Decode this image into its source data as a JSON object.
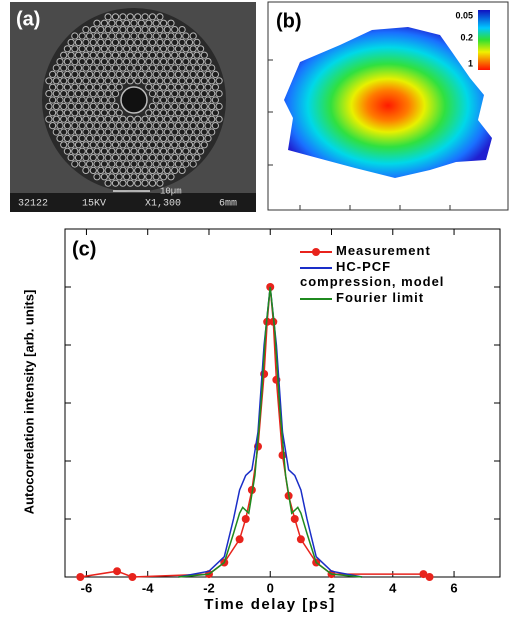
{
  "panel_a": {
    "label": "(a)",
    "scale_bar": "10µm",
    "info": [
      "32122",
      "15KV",
      "X1,300",
      "6mm"
    ]
  },
  "panel_b": {
    "label": "(b)",
    "colorbar_labels": [
      "0.05",
      "0.2",
      "1"
    ]
  },
  "chart_data": {
    "type": "line",
    "label": "(c)",
    "x_label": "Time delay [ps]",
    "y_label": "Autocorrelation intensity [arb. units]",
    "xlim": [
      -6.7,
      7.5
    ],
    "xticks": [
      -6,
      -4,
      -2,
      0,
      2,
      4,
      6
    ],
    "ylim": [
      0,
      1.2
    ],
    "yticks": [
      0,
      0.2,
      0.4,
      0.6,
      0.8,
      1.0
    ],
    "ytick_labels": false,
    "legend": "upper right",
    "series": [
      {
        "name": "Measurement",
        "color": "#e8231c",
        "markers": true,
        "x": [
          -6.2,
          -5,
          -4.5,
          -2,
          -1.5,
          -1,
          -0.8,
          -0.6,
          -0.4,
          -0.2,
          -0.1,
          0,
          0.1,
          0.2,
          0.4,
          0.6,
          0.8,
          1,
          1.5,
          2,
          5,
          5.2
        ],
        "values": [
          0,
          0.02,
          0,
          0.01,
          0.05,
          0.13,
          0.2,
          0.3,
          0.45,
          0.7,
          0.88,
          1.0,
          0.88,
          0.68,
          0.42,
          0.28,
          0.2,
          0.13,
          0.05,
          0.01,
          0.01,
          0
        ]
      },
      {
        "name": "HC-PCF compression, model",
        "color": "#1a2ec8",
        "markers": false,
        "x": [
          -3,
          -2,
          -1.5,
          -1.2,
          -1,
          -0.8,
          -0.6,
          -0.4,
          -0.2,
          0,
          0.2,
          0.4,
          0.6,
          0.8,
          1,
          1.2,
          1.5,
          2,
          3
        ],
        "values": [
          0,
          0.02,
          0.07,
          0.2,
          0.3,
          0.35,
          0.37,
          0.5,
          0.8,
          1.0,
          0.8,
          0.5,
          0.37,
          0.35,
          0.3,
          0.2,
          0.07,
          0.02,
          0
        ]
      },
      {
        "name": "Fourier limit",
        "color": "#1f8a1f",
        "markers": false,
        "x": [
          -3,
          -2,
          -1.5,
          -1.2,
          -1,
          -0.9,
          -0.7,
          -0.5,
          -0.3,
          -0.15,
          0,
          0.15,
          0.3,
          0.5,
          0.7,
          0.9,
          1,
          1.2,
          1.5,
          2,
          3
        ],
        "values": [
          0,
          0.01,
          0.05,
          0.15,
          0.22,
          0.24,
          0.22,
          0.35,
          0.6,
          0.85,
          1.0,
          0.85,
          0.6,
          0.35,
          0.22,
          0.24,
          0.22,
          0.15,
          0.05,
          0.01,
          0
        ]
      }
    ]
  }
}
